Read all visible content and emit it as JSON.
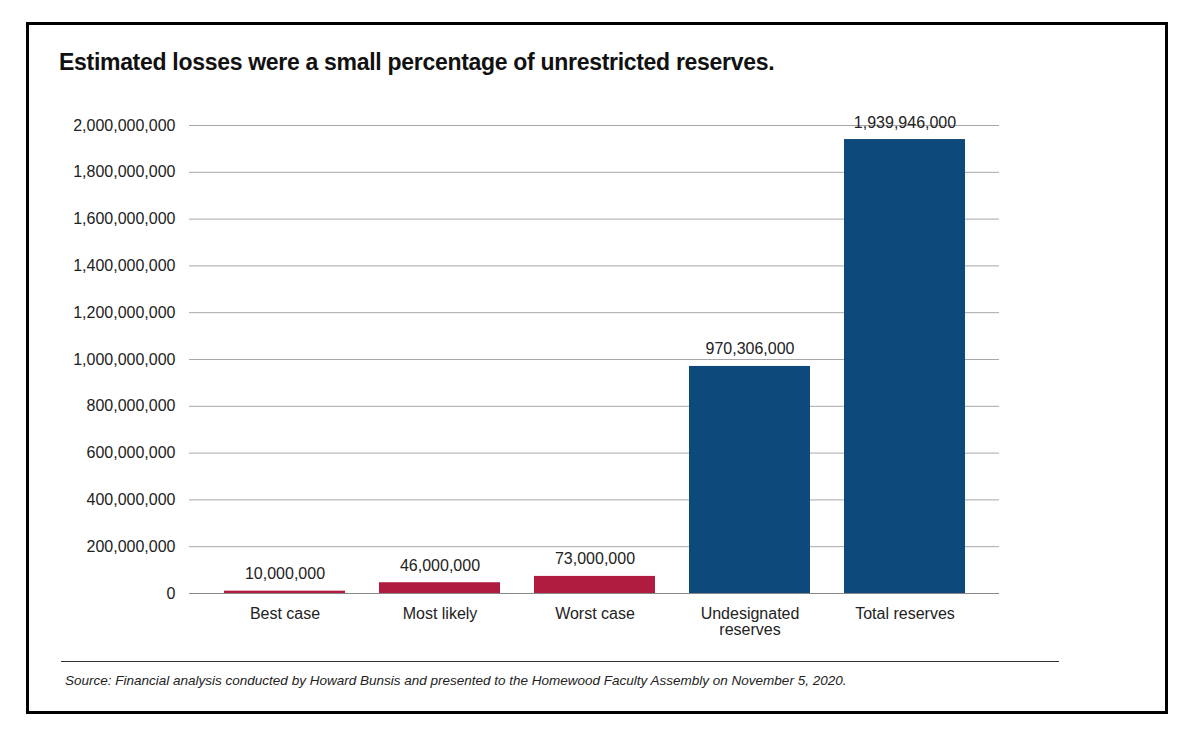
{
  "chart_data": {
    "type": "bar",
    "title": "Estimated losses were a small percentage of unrestricted reserves.",
    "caption": "Source: Financial analysis conducted by Howard Bunsis and presented to the Homewood Faculty Assembly on November 5, 2020.",
    "categories": [
      "Best case",
      "Most likely",
      "Worst case",
      "Undesignated reserves",
      "Total reserves"
    ],
    "values": [
      10000000,
      46000000,
      73000000,
      970306000,
      1939946000
    ],
    "value_labels": [
      "10,000,000",
      "46,000,000",
      "73,000,000",
      "970,306,000",
      "1,939,946,000"
    ],
    "colors": [
      "#b01c3f",
      "#b01c3f",
      "#b01c3f",
      "#0d4a7b",
      "#0d4a7b"
    ],
    "ylim": [
      0,
      2000000000
    ],
    "yticks": [
      0,
      {
        "value": 200000000,
        "label": "200,000,000"
      },
      {
        "value": 400000000,
        "label": "400,000,000"
      },
      {
        "value": 600000000,
        "label": "600,000,000"
      },
      {
        "value": 800000000,
        "label": "800,000,000"
      },
      {
        "value": 1000000000,
        "label": "1,000,000,000"
      },
      {
        "value": 1200000000,
        "label": "1,200,000,000"
      },
      {
        "value": 1400000000,
        "label": "1,400,000,000"
      },
      {
        "value": 1600000000,
        "label": "1,600,000,000"
      },
      {
        "value": 1800000000,
        "label": "1,800,000,000"
      },
      {
        "value": 2000000000,
        "label": "2,000,000,000"
      }
    ],
    "grid": true,
    "data_labels": true
  }
}
